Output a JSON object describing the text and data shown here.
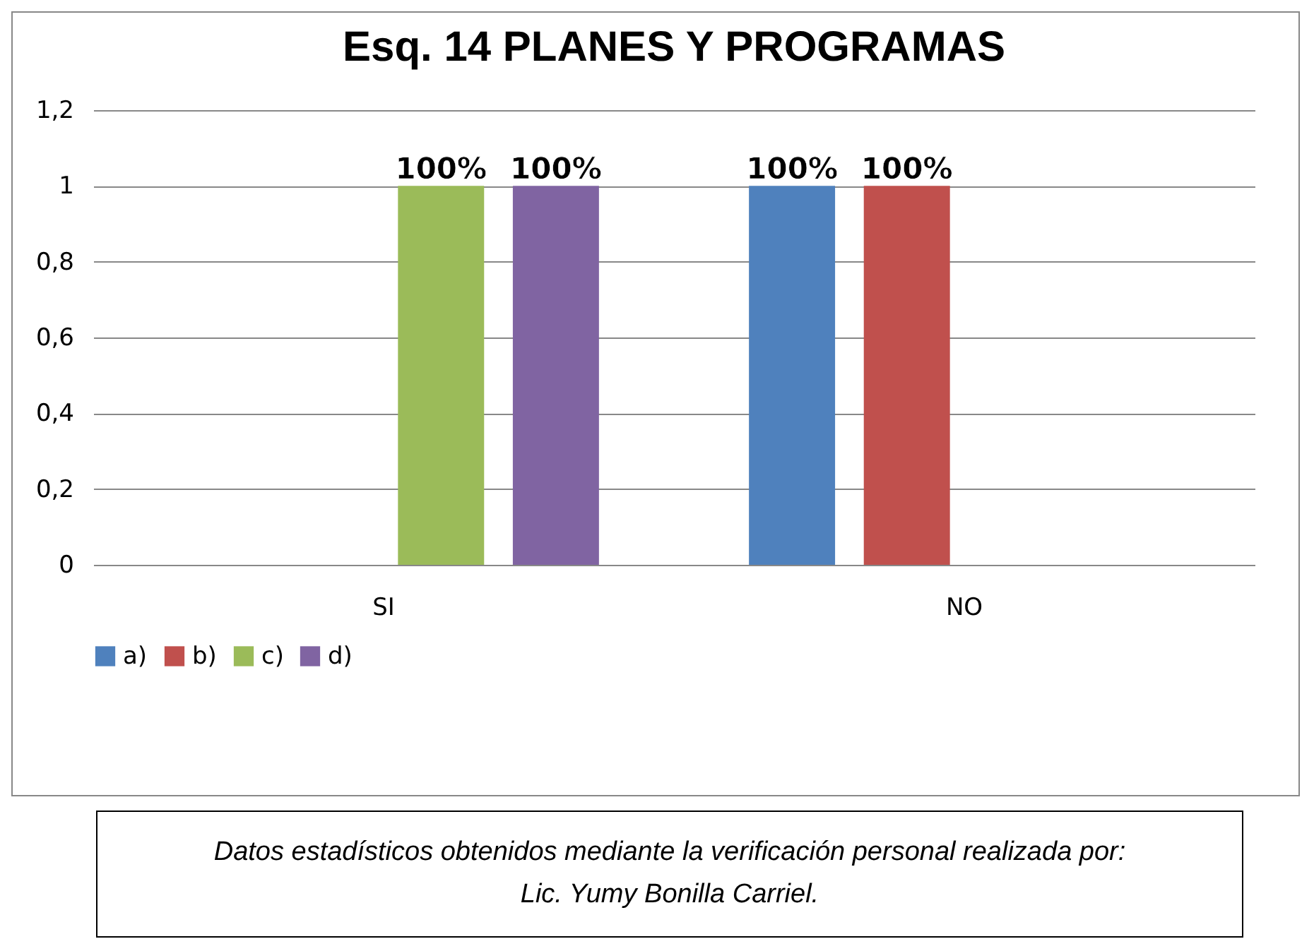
{
  "chart_data": {
    "type": "bar",
    "title": "Esq. 14  PLANES Y PROGRAMAS",
    "categories": [
      "SI",
      "NO"
    ],
    "series": [
      {
        "name": "a)",
        "color": "#4f81bd",
        "values": [
          null,
          1
        ],
        "value_labels": [
          null,
          "100%"
        ]
      },
      {
        "name": "b)",
        "color": "#c0504d",
        "values": [
          null,
          1
        ],
        "value_labels": [
          null,
          "100%"
        ]
      },
      {
        "name": "c)",
        "color": "#9bbb59",
        "values": [
          1,
          null
        ],
        "value_labels": [
          "100%",
          null
        ]
      },
      {
        "name": "d)",
        "color": "#8064a2",
        "values": [
          1,
          null
        ],
        "value_labels": [
          "100%",
          null
        ]
      }
    ],
    "ylim": [
      0,
      1.2
    ],
    "yticks": [
      {
        "value": 0,
        "label": "0"
      },
      {
        "value": 0.2,
        "label": "0,2"
      },
      {
        "value": 0.4,
        "label": "0,4"
      },
      {
        "value": 0.6,
        "label": "0,6"
      },
      {
        "value": 0.8,
        "label": "0,8"
      },
      {
        "value": 1,
        "label": "1"
      },
      {
        "value": 1.2,
        "label": "1,2"
      }
    ],
    "grid": "y",
    "legend": "bottom",
    "annotations": [
      "Datos estadísticos obtenidos mediante la verificación personal realizada por: Lic. Yumy Bonilla Carriel."
    ]
  }
}
